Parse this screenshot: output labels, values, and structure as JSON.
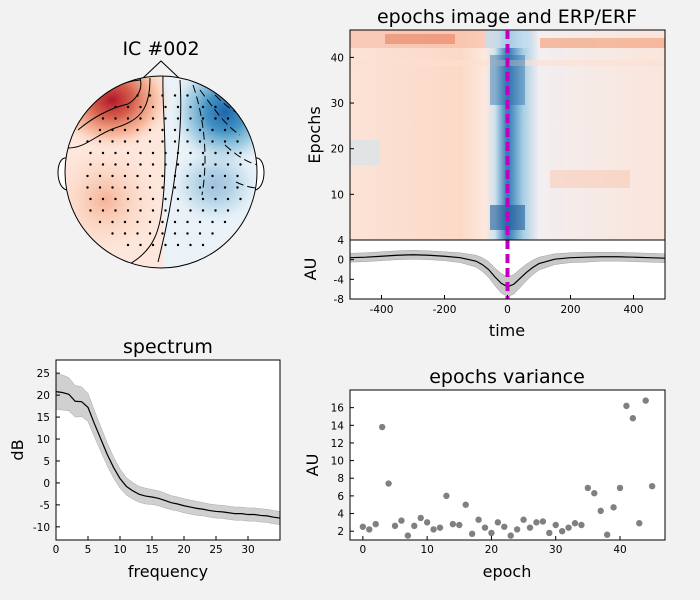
{
  "chart_data": [
    {
      "type": "topomap",
      "title": "IC #002",
      "colors": {
        "positive": "#b2182b",
        "negative": "#2166ac",
        "neutral": "#ffffff"
      }
    },
    {
      "type": "heatmap",
      "title": "epochs image and ERP/ERF",
      "ylabel": "Epochs",
      "yticks": [
        10,
        20,
        30,
        40
      ],
      "ylim": [
        0,
        46
      ],
      "xlim": [
        -500,
        500
      ],
      "event_marker_x": 0,
      "event_marker_color": "#bf00bf"
    },
    {
      "type": "line",
      "xlabel": "time",
      "ylabel": "AU",
      "xlim": [
        -500,
        500
      ],
      "ylim": [
        -8,
        4
      ],
      "xticks": [
        -400,
        -200,
        0,
        200,
        400
      ],
      "yticks": [
        -8,
        -4,
        0,
        4
      ],
      "x": [
        -500,
        -450,
        -400,
        -350,
        -300,
        -250,
        -200,
        -150,
        -100,
        -80,
        -60,
        -40,
        -20,
        0,
        20,
        40,
        60,
        80,
        100,
        150,
        200,
        250,
        300,
        350,
        400,
        450,
        500
      ],
      "series": [
        {
          "values": [
            0.4,
            0.5,
            0.7,
            0.9,
            1.0,
            0.9,
            0.7,
            0.4,
            -0.3,
            -1.0,
            -2.0,
            -3.5,
            -4.8,
            -5.5,
            -5.0,
            -3.8,
            -2.6,
            -1.6,
            -0.8,
            0.1,
            0.4,
            0.5,
            0.6,
            0.6,
            0.5,
            0.4,
            0.3
          ],
          "band": [
            0.9,
            0.9,
            0.9,
            0.9,
            0.9,
            0.9,
            0.9,
            1.0,
            1.2,
            1.4,
            1.6,
            1.8,
            2.0,
            2.0,
            2.0,
            1.9,
            1.7,
            1.5,
            1.3,
            1.1,
            1.0,
            1.0,
            0.9,
            0.9,
            0.9,
            0.9,
            0.9
          ]
        }
      ]
    },
    {
      "type": "line",
      "title": "spectrum",
      "xlabel": "frequency",
      "ylabel": "dB",
      "xlim": [
        0,
        35
      ],
      "ylim": [
        -13,
        28
      ],
      "xticks": [
        0,
        5,
        10,
        15,
        20,
        25,
        30
      ],
      "yticks": [
        -10,
        -5,
        0,
        5,
        10,
        15,
        20,
        25
      ],
      "x": [
        0,
        1,
        2,
        3,
        4,
        5,
        6,
        7,
        8,
        9,
        10,
        11,
        12,
        13,
        14,
        15,
        16,
        17,
        18,
        19,
        20,
        21,
        22,
        23,
        24,
        25,
        26,
        27,
        28,
        29,
        30,
        31,
        32,
        33,
        34,
        35
      ],
      "series": [
        {
          "values": [
            20.8,
            20.6,
            20.2,
            18.6,
            18.5,
            17.2,
            13.5,
            10.0,
            6.5,
            3.5,
            1.0,
            -0.8,
            -1.8,
            -2.6,
            -3.0,
            -3.2,
            -3.5,
            -4.0,
            -4.5,
            -4.8,
            -5.2,
            -5.5,
            -5.8,
            -6.0,
            -6.3,
            -6.5,
            -6.6,
            -6.8,
            -7.0,
            -7.0,
            -7.2,
            -7.2,
            -7.4,
            -7.5,
            -7.8,
            -8.0
          ],
          "band": [
            4.0,
            4.0,
            3.8,
            3.6,
            3.4,
            3.2,
            3.0,
            2.8,
            2.6,
            2.4,
            2.2,
            2.0,
            1.9,
            1.8,
            1.8,
            1.7,
            1.7,
            1.7,
            1.6,
            1.6,
            1.6,
            1.6,
            1.6,
            1.5,
            1.5,
            1.5,
            1.5,
            1.5,
            1.5,
            1.5,
            1.5,
            1.5,
            1.5,
            1.5,
            1.5,
            1.5
          ]
        }
      ]
    },
    {
      "type": "scatter",
      "title": "epochs variance",
      "xlabel": "epoch",
      "ylabel": "AU",
      "xlim": [
        -2,
        47
      ],
      "ylim": [
        1,
        18
      ],
      "xticks": [
        0,
        10,
        20,
        30,
        40
      ],
      "yticks": [
        2,
        4,
        6,
        8,
        10,
        12,
        14,
        16
      ],
      "x": [
        0,
        1,
        2,
        3,
        4,
        5,
        6,
        7,
        8,
        9,
        10,
        11,
        12,
        13,
        14,
        15,
        16,
        17,
        18,
        19,
        20,
        21,
        22,
        23,
        24,
        25,
        26,
        27,
        28,
        29,
        30,
        31,
        32,
        33,
        34,
        35,
        36,
        37,
        38,
        39,
        40,
        41,
        42,
        43,
        44,
        45
      ],
      "y": [
        2.5,
        2.2,
        2.8,
        13.8,
        7.4,
        2.6,
        3.2,
        1.5,
        2.6,
        3.5,
        3.0,
        2.2,
        2.4,
        6.0,
        2.8,
        2.7,
        5.0,
        1.7,
        3.3,
        2.4,
        1.8,
        3.0,
        2.5,
        1.5,
        2.2,
        3.3,
        2.4,
        3.0,
        3.1,
        1.8,
        2.7,
        2.0,
        2.4,
        2.9,
        2.7,
        6.9,
        6.3,
        4.3,
        1.6,
        4.7,
        6.9,
        16.2,
        14.8,
        2.9,
        16.8,
        7.1
      ],
      "marker_color": "#808080"
    }
  ]
}
